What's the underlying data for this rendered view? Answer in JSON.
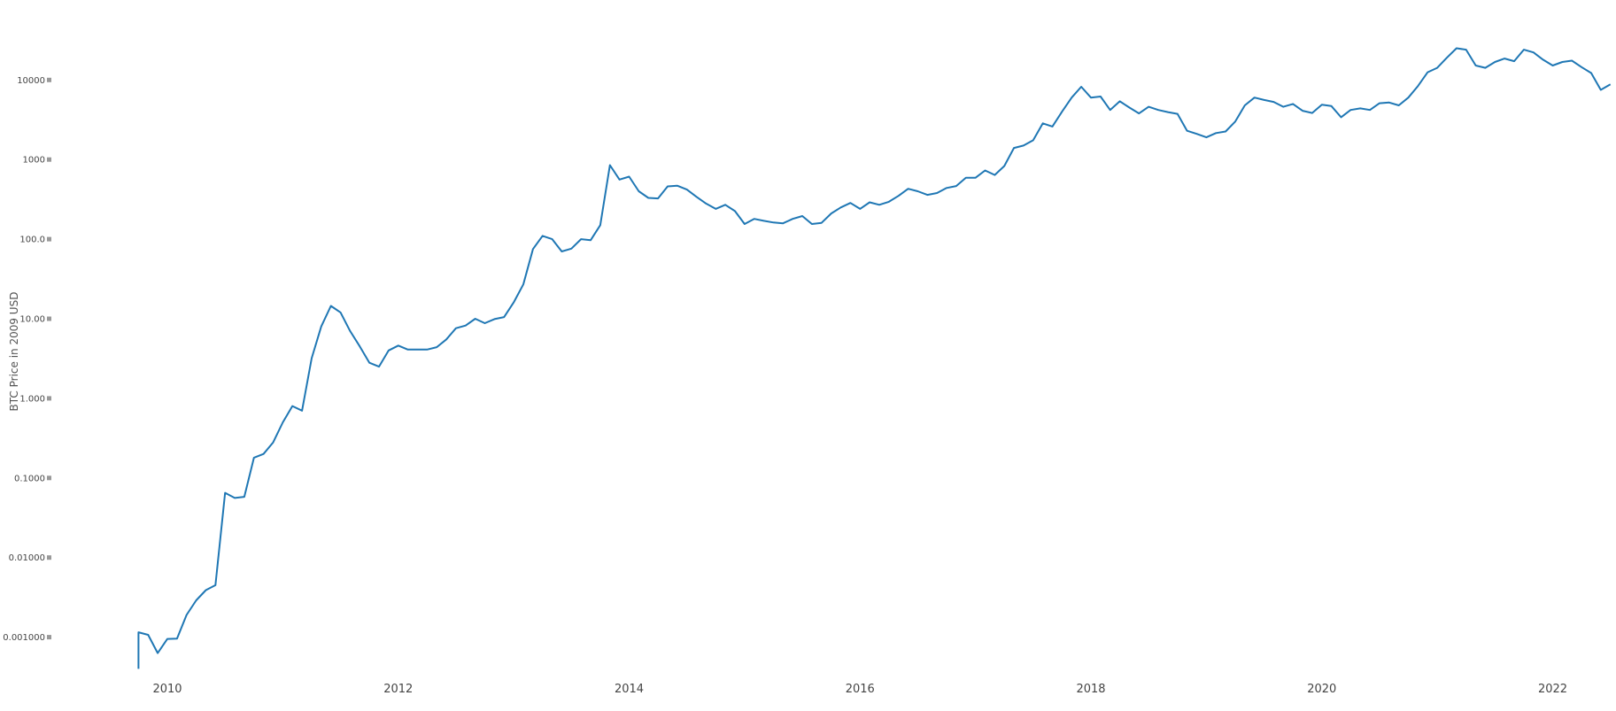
{
  "chart_data": {
    "type": "line",
    "title": "",
    "xlabel": "",
    "ylabel": "BTC Price in 2009 USD",
    "y_scale": "log",
    "ylim": [
      0.0004,
      50000
    ],
    "xlim": [
      "2009-06-01",
      "2022-09-01"
    ],
    "grid": false,
    "legend": "none",
    "line_color": "#1f77b4",
    "x_ticks": [
      {
        "value": "2010-01-01",
        "label": "2010"
      },
      {
        "value": "2012-01-01",
        "label": "2012"
      },
      {
        "value": "2014-01-01",
        "label": "2014"
      },
      {
        "value": "2016-01-01",
        "label": "2016"
      },
      {
        "value": "2018-01-01",
        "label": "2018"
      },
      {
        "value": "2020-01-01",
        "label": "2020"
      },
      {
        "value": "2022-01-01",
        "label": "2022"
      }
    ],
    "y_ticks": [
      {
        "value": 0.001,
        "label": "0.001000"
      },
      {
        "value": 0.01,
        "label": "0.01000"
      },
      {
        "value": 0.1,
        "label": "0.1000"
      },
      {
        "value": 1,
        "label": "1.000"
      },
      {
        "value": 10,
        "label": "10.00"
      },
      {
        "value": 100,
        "label": "100.0"
      },
      {
        "value": 1000,
        "label": "1000"
      },
      {
        "value": 10000,
        "label": "10000"
      }
    ],
    "series": [
      {
        "x": [
          "2009-10-01",
          "2009-10-01",
          "2009-11-01",
          "2009-12-01",
          "2010-01-01",
          "2010-02-01",
          "2010-03-01",
          "2010-04-01",
          "2010-05-01",
          "2010-06-01",
          "2010-07-01",
          "2010-08-01",
          "2010-09-01",
          "2010-10-01",
          "2010-11-01",
          "2010-12-01",
          "2011-01-01",
          "2011-02-01",
          "2011-03-01",
          "2011-04-01",
          "2011-05-01",
          "2011-06-01",
          "2011-07-01",
          "2011-08-01",
          "2011-09-01",
          "2011-10-01",
          "2011-11-01",
          "2011-12-01",
          "2012-01-01",
          "2012-02-01",
          "2012-03-01",
          "2012-04-01",
          "2012-05-01",
          "2012-06-01",
          "2012-07-01",
          "2012-08-01",
          "2012-09-01",
          "2012-10-01",
          "2012-11-01",
          "2012-12-01",
          "2013-01-01",
          "2013-02-01",
          "2013-03-01",
          "2013-04-01",
          "2013-05-01",
          "2013-06-01",
          "2013-07-01",
          "2013-08-01",
          "2013-09-01",
          "2013-10-01",
          "2013-11-01",
          "2013-12-01",
          "2014-01-01",
          "2014-02-01",
          "2014-03-01",
          "2014-04-01",
          "2014-05-01",
          "2014-06-01",
          "2014-07-01",
          "2014-08-01",
          "2014-09-01",
          "2014-10-01",
          "2014-11-01",
          "2014-12-01",
          "2015-01-01",
          "2015-02-01",
          "2015-03-01",
          "2015-04-01",
          "2015-05-01",
          "2015-06-01",
          "2015-07-01",
          "2015-08-01",
          "2015-09-01",
          "2015-10-01",
          "2015-11-01",
          "2015-12-01",
          "2016-01-01",
          "2016-02-01",
          "2016-03-01",
          "2016-04-01",
          "2016-05-01",
          "2016-06-01",
          "2016-07-01",
          "2016-08-01",
          "2016-09-01",
          "2016-10-01",
          "2016-11-01",
          "2016-12-01",
          "2017-01-01",
          "2017-02-01",
          "2017-03-01",
          "2017-04-01",
          "2017-05-01",
          "2017-06-01",
          "2017-07-01",
          "2017-08-01",
          "2017-09-01",
          "2017-10-01",
          "2017-11-01",
          "2017-12-01",
          "2018-01-01",
          "2018-02-01",
          "2018-03-01",
          "2018-04-01",
          "2018-05-01",
          "2018-06-01",
          "2018-07-01",
          "2018-08-01",
          "2018-09-01",
          "2018-10-01",
          "2018-11-01",
          "2018-12-01",
          "2019-01-01",
          "2019-02-01",
          "2019-03-01",
          "2019-04-01",
          "2019-05-01",
          "2019-06-01",
          "2019-07-01",
          "2019-08-01",
          "2019-09-01",
          "2019-10-01",
          "2019-11-01",
          "2019-12-01",
          "2020-01-01",
          "2020-02-01",
          "2020-03-01",
          "2020-04-01",
          "2020-05-01",
          "2020-06-01",
          "2020-07-01",
          "2020-08-01",
          "2020-09-01",
          "2020-10-01",
          "2020-11-01",
          "2020-12-01",
          "2021-01-01",
          "2021-02-01",
          "2021-03-01",
          "2021-04-01",
          "2021-05-01",
          "2021-06-01",
          "2021-07-01",
          "2021-08-01",
          "2021-09-01",
          "2021-10-01",
          "2021-11-01",
          "2021-12-01",
          "2022-01-01",
          "2022-02-01",
          "2022-03-01",
          "2022-04-01",
          "2022-05-01",
          "2022-06-01",
          "2022-07-01"
        ],
        "y": [
          0.0004,
          0.00115,
          0.00107,
          0.00063,
          0.00095,
          0.00096,
          0.0019,
          0.0029,
          0.0039,
          0.0045,
          0.065,
          0.056,
          0.058,
          0.18,
          0.2,
          0.28,
          0.5,
          0.8,
          0.7,
          3.2,
          8,
          14.5,
          12,
          7,
          4.5,
          2.8,
          2.5,
          4,
          4.6,
          4.1,
          4.1,
          4.1,
          4.4,
          5.5,
          7.6,
          8.2,
          10,
          8.8,
          9.9,
          10.5,
          16,
          27,
          75,
          110,
          100,
          70,
          76,
          100,
          97,
          150,
          850,
          560,
          610,
          400,
          330,
          325,
          460,
          470,
          420,
          340,
          280,
          240,
          270,
          225,
          155,
          180,
          170,
          162,
          158,
          180,
          195,
          155,
          160,
          210,
          250,
          285,
          240,
          290,
          270,
          295,
          350,
          430,
          400,
          360,
          380,
          440,
          465,
          590,
          590,
          730,
          640,
          830,
          1400,
          1500,
          1750,
          2850,
          2600,
          4000,
          6000,
          8200,
          6000,
          6200,
          4200,
          5400,
          4500,
          3800,
          4600,
          4200,
          3950,
          3750,
          2300,
          2100,
          1900,
          2150,
          2250,
          3000,
          4800,
          6000,
          5600,
          5300,
          4600,
          5000,
          4100,
          3850,
          4900,
          4700,
          3400,
          4200,
          4400,
          4200,
          5100,
          5200,
          4800,
          6000,
          8400,
          12500,
          14200,
          19000,
          25000,
          24000,
          15200,
          14200,
          16800,
          18600,
          17200,
          24000,
          22200,
          18000,
          15200,
          16800,
          17500,
          14500,
          12200,
          7500,
          8800
        ]
      }
    ]
  }
}
